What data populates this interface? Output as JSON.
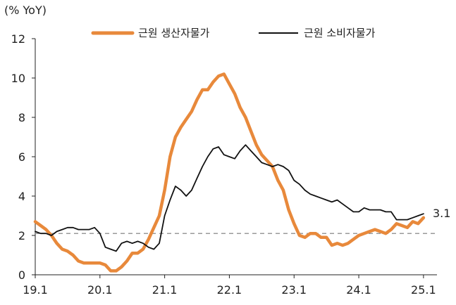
{
  "chart_data": {
    "type": "line",
    "unit_label": "(% YoY)",
    "title": "",
    "xlabel": "",
    "ylabel": "",
    "x_tick_labels": [
      "19.1",
      "20.1",
      "21.1",
      "22.1",
      "23.1",
      "24.1",
      "25.1"
    ],
    "x_ticks_index": [
      0,
      12,
      24,
      36,
      48,
      60,
      72
    ],
    "ylim": [
      0,
      12
    ],
    "y_ticks": [
      0,
      2,
      4,
      6,
      8,
      10,
      12
    ],
    "y_tick_labels": [
      "0",
      "2",
      "4",
      "6",
      "8",
      "10",
      "12"
    ],
    "grid": false,
    "legend_position": "top",
    "reference_line": {
      "value": 2.1,
      "style": "dashed",
      "color": "#9a9a9a"
    },
    "annotation": {
      "text": "3.1",
      "series_index": 1
    },
    "series": [
      {
        "name": "근원 생산자물가",
        "color": "#e8893b",
        "start_index": 0,
        "values": [
          2.7,
          2.5,
          2.3,
          2.0,
          1.6,
          1.3,
          1.2,
          1.0,
          0.7,
          0.6,
          0.6,
          0.6,
          0.6,
          0.5,
          0.2,
          0.2,
          0.4,
          0.7,
          1.1,
          1.1,
          1.3,
          1.8,
          2.4,
          3.0,
          4.3,
          6.0,
          7.0,
          7.5,
          7.9,
          8.3,
          8.9,
          9.4,
          9.4,
          9.8,
          10.1,
          10.2,
          9.7,
          9.2,
          8.5,
          8.0,
          7.3,
          6.6,
          6.1,
          5.8,
          5.5,
          4.8,
          4.3,
          3.3,
          2.6,
          2.0,
          1.9,
          2.1,
          2.1,
          1.9,
          1.9,
          1.5,
          1.6,
          1.5,
          1.6,
          1.8,
          2.0,
          2.1,
          2.2,
          2.3,
          2.2,
          2.1,
          2.3,
          2.6,
          2.5,
          2.4,
          2.7,
          2.6,
          2.9
        ]
      },
      {
        "name": "근원 소비자물가",
        "color": "#111111",
        "start_index": 0,
        "values": [
          2.2,
          2.1,
          2.1,
          2.0,
          2.2,
          2.3,
          2.4,
          2.4,
          2.3,
          2.3,
          2.3,
          2.4,
          2.1,
          1.4,
          1.3,
          1.2,
          1.6,
          1.7,
          1.6,
          1.7,
          1.6,
          1.4,
          1.3,
          1.6,
          3.0,
          3.8,
          4.5,
          4.3,
          4.0,
          4.3,
          4.9,
          5.5,
          6.0,
          6.4,
          6.5,
          6.1,
          6.0,
          5.9,
          6.3,
          6.6,
          6.3,
          6.0,
          5.7,
          5.6,
          5.5,
          5.6,
          5.5,
          5.3,
          4.8,
          4.6,
          4.3,
          4.1,
          4.0,
          3.9,
          3.8,
          3.7,
          3.8,
          3.6,
          3.4,
          3.2,
          3.2,
          3.4,
          3.3,
          3.3,
          3.3,
          3.2,
          3.2,
          2.8,
          2.8,
          2.8,
          2.9,
          3.0,
          3.1
        ]
      }
    ]
  }
}
